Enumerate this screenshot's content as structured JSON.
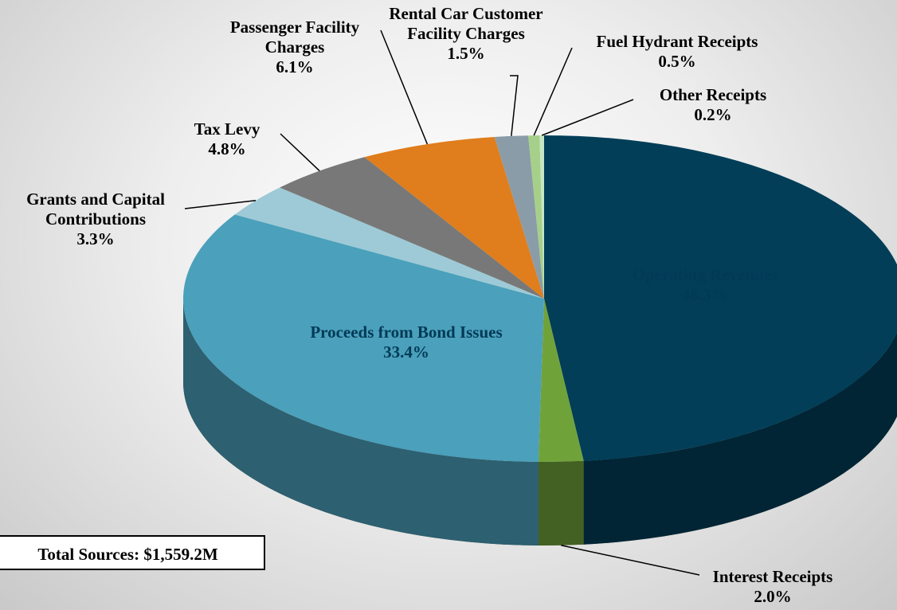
{
  "chart_data": {
    "type": "pie",
    "categories": [
      "Operating Revenues",
      "Interest Receipts",
      "Proceeds from Bond Issues",
      "Grants and Capital Contributions",
      "Tax Levy",
      "Passenger Facility Charges",
      "Rental Car Customer Facility Charges",
      "Fuel Hydrant Receipts",
      "Other Receipts"
    ],
    "values": [
      48.3,
      2.0,
      33.4,
      3.3,
      4.8,
      6.1,
      1.5,
      0.5,
      0.2
    ],
    "value_labels": [
      "48.3%",
      "2.0%",
      "33.4%",
      "3.3%",
      "4.8%",
      "6.1%",
      "1.5%",
      "0.5%",
      "0.2%"
    ],
    "colors": [
      "#023e58",
      "#70a23a",
      "#4ba0bb",
      "#9dcad6",
      "#787878",
      "#e07d1c",
      "#8a9ca8",
      "#a6d08a",
      "#c6e6c4"
    ],
    "annotation": "Total Sources: $1,559.2M"
  }
}
